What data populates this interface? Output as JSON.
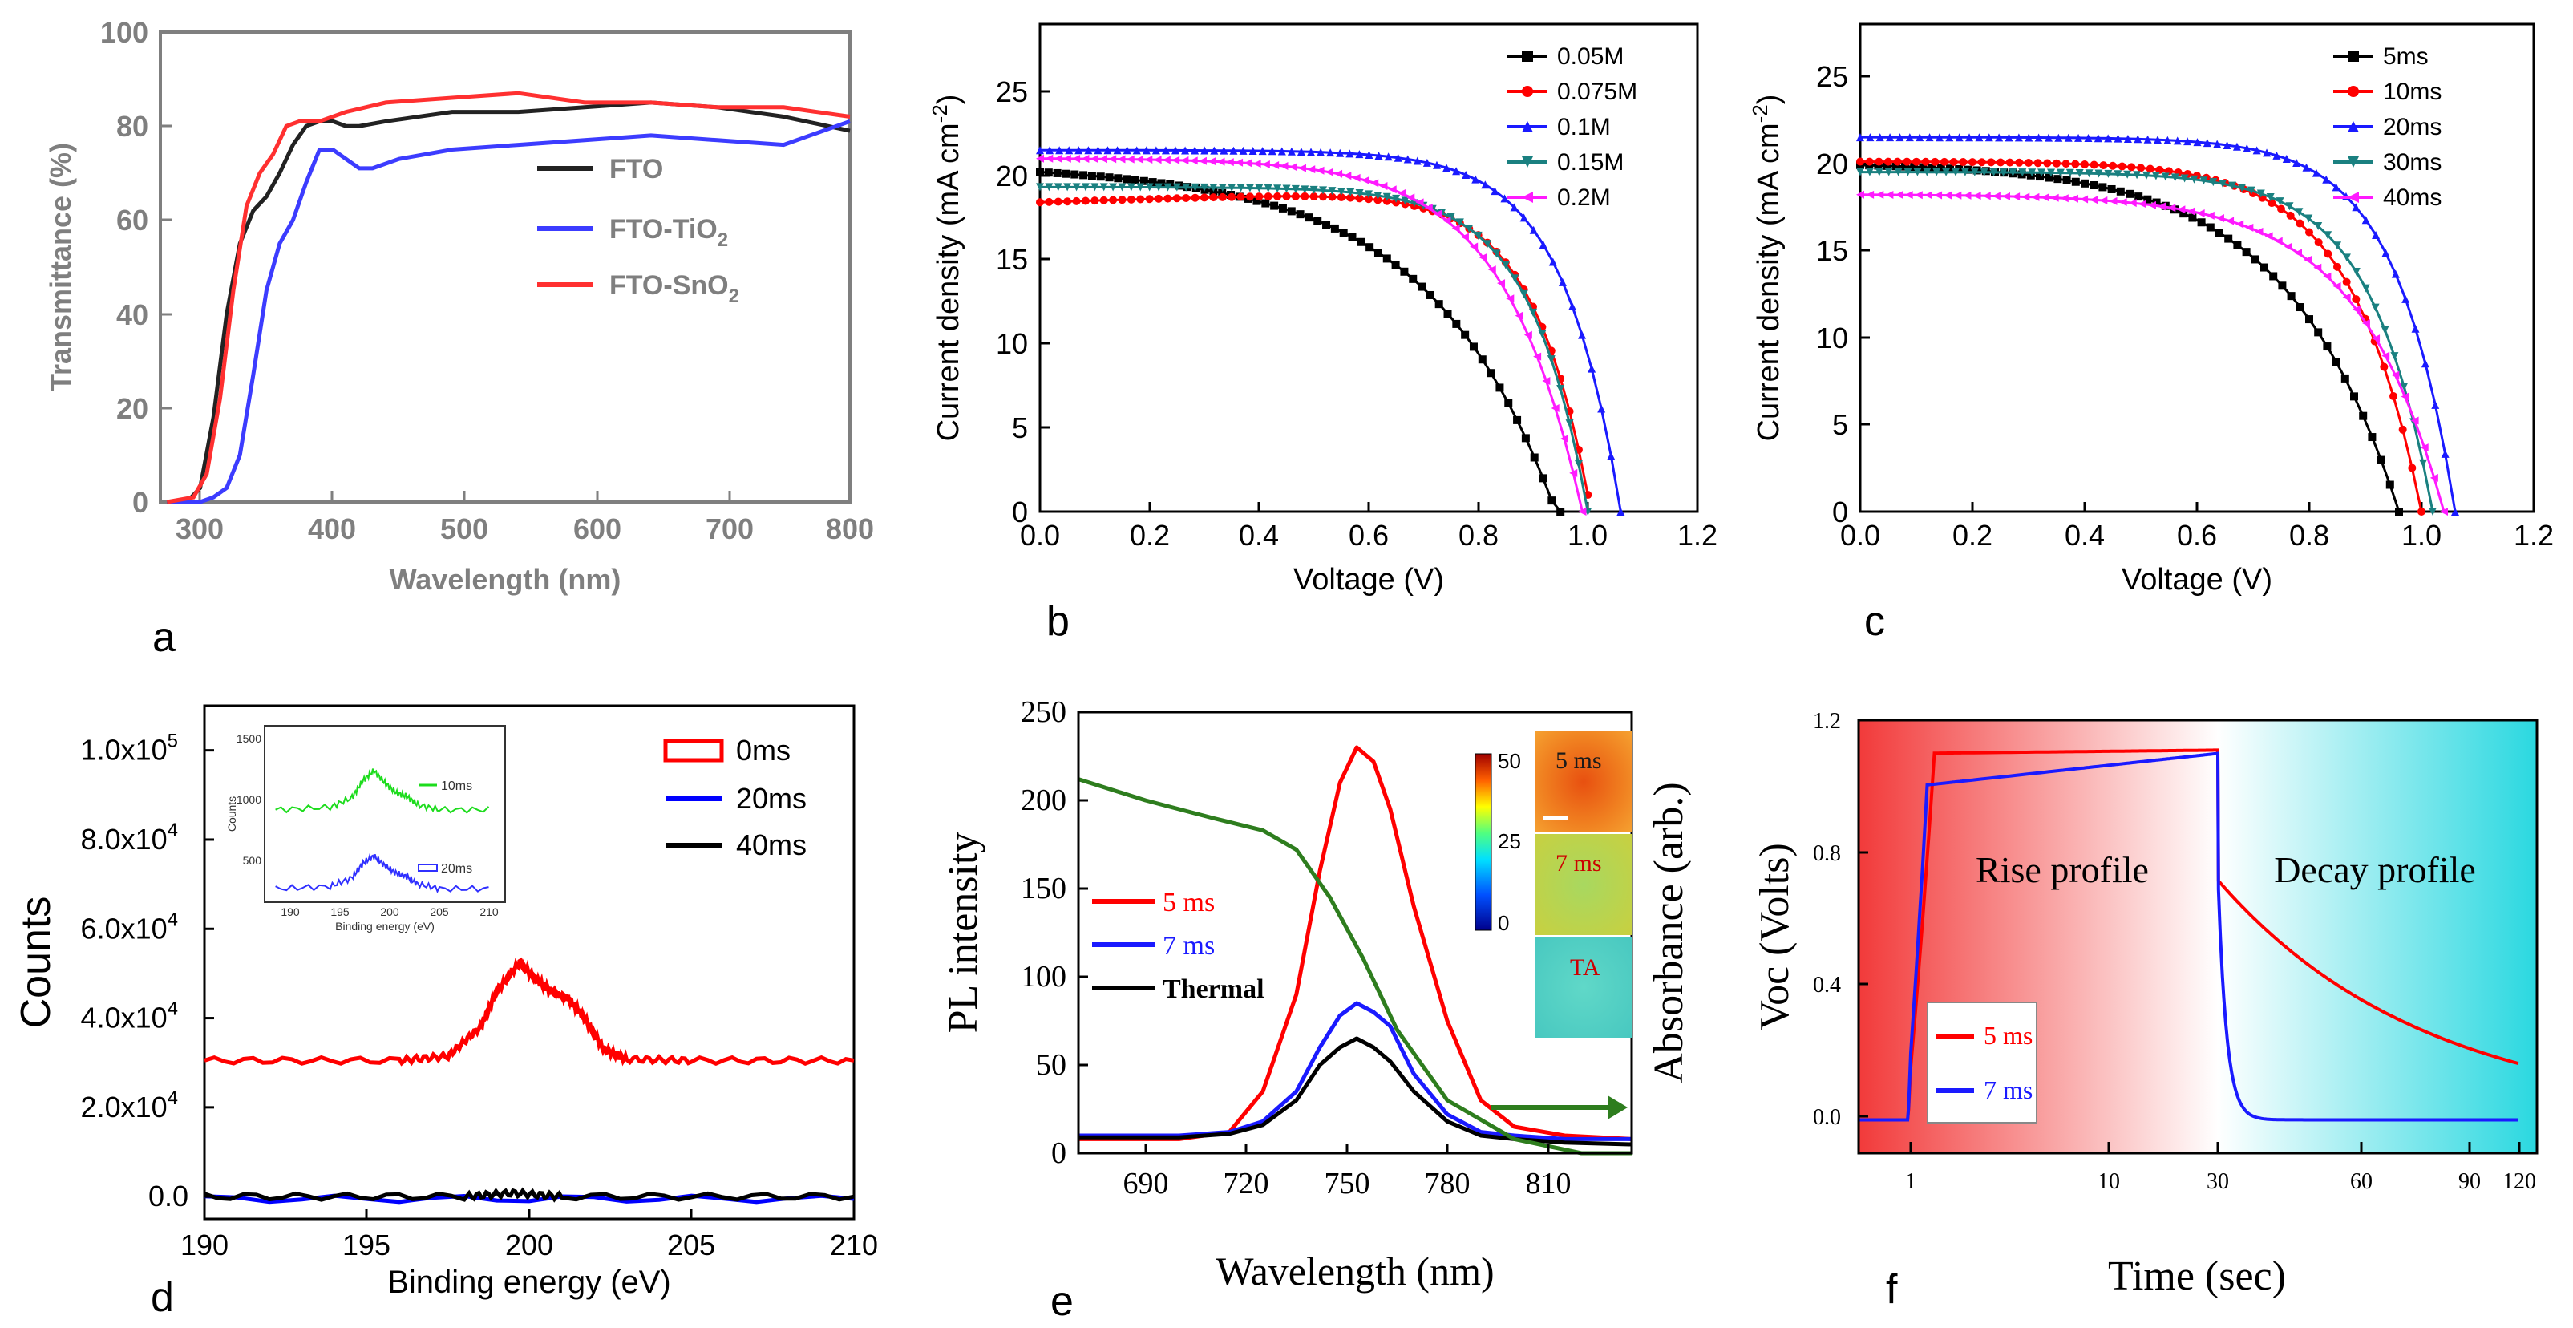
{
  "colors": {
    "black": "#000000",
    "red": "#ff0000",
    "blue": "#1a1aff",
    "teal": "#1a8080",
    "magenta": "#ff1aff",
    "green": "#1ddc1d",
    "olive": "#2e7d1e",
    "gray": "#7f7f7f"
  },
  "chart_data": [
    {
      "id": "a",
      "panel_label": "a",
      "type": "line",
      "xlabel": "Wavelength (nm)",
      "ylabel": "Transmittance (%)",
      "xlim": [
        280,
        800
      ],
      "ylim": [
        0,
        100
      ],
      "xticks": [
        "300",
        "400",
        "500",
        "600",
        "700",
        "800"
      ],
      "yticks": [
        "0",
        "20",
        "40",
        "60",
        "80",
        "100"
      ],
      "legend_position": "center-right",
      "series": [
        {
          "name": "FTO",
          "legend_main": "FTO",
          "legend_sub": "",
          "color": "#222222",
          "x": [
            285,
            300,
            310,
            320,
            330,
            340,
            350,
            360,
            370,
            380,
            390,
            400,
            410,
            420,
            430,
            450,
            500,
            550,
            600,
            650,
            700,
            750,
            800
          ],
          "y": [
            0,
            0,
            3,
            18,
            40,
            55,
            62,
            65,
            70,
            76,
            80,
            81,
            81,
            80,
            80,
            81,
            83,
            83,
            84,
            85,
            84,
            82,
            79
          ]
        },
        {
          "name": "FTO-TiO2",
          "legend_main": "FTO-TiO",
          "legend_sub": "2",
          "color": "#3c3cff",
          "x": [
            285,
            310,
            320,
            330,
            340,
            350,
            360,
            370,
            380,
            390,
            400,
            410,
            420,
            430,
            440,
            460,
            500,
            550,
            600,
            650,
            700,
            750,
            800
          ],
          "y": [
            0,
            0,
            1,
            3,
            10,
            27,
            45,
            55,
            60,
            68,
            75,
            75,
            73,
            71,
            71,
            73,
            75,
            76,
            77,
            78,
            77,
            76,
            81
          ]
        },
        {
          "name": "FTO-SnO2",
          "legend_main": "FTO-SnO",
          "legend_sub": "2",
          "color": "#ff3030",
          "x": [
            285,
            305,
            315,
            325,
            335,
            345,
            355,
            365,
            375,
            385,
            395,
            400,
            420,
            450,
            500,
            550,
            600,
            650,
            700,
            750,
            800
          ],
          "y": [
            0,
            1,
            6,
            22,
            45,
            63,
            70,
            74,
            80,
            81,
            81,
            81,
            83,
            85,
            86,
            87,
            85,
            85,
            84,
            84,
            82
          ]
        }
      ]
    },
    {
      "id": "b",
      "panel_label": "b",
      "type": "line",
      "xlabel": "Voltage (V)",
      "ylabel": "Current density (mA cm",
      "ylabel_sup": "-2",
      "ylabel_end": ")",
      "xlim": [
        0,
        1.2
      ],
      "ylim": [
        0,
        29
      ],
      "xticks": [
        "0.0",
        "0.2",
        "0.4",
        "0.6",
        "0.8",
        "1.0",
        "1.2"
      ],
      "yticks": [
        "0",
        "5",
        "10",
        "15",
        "20",
        "25"
      ],
      "legend_position": "top-right",
      "series": [
        {
          "name": "0.05M",
          "color": "#000000",
          "marker": "square",
          "jsc": 20.2,
          "voc": 0.95,
          "k": 4.5,
          "b": -0.8
        },
        {
          "name": "0.075M",
          "color": "#ff0000",
          "marker": "circle",
          "jsc": 18.4,
          "voc": 1.0,
          "k": 9.5,
          "b": 1.0
        },
        {
          "name": "0.1M",
          "color": "#1a1aff",
          "marker": "triangle-up",
          "jsc": 21.5,
          "voc": 1.06,
          "k": 9.5,
          "b": 0.0
        },
        {
          "name": "0.15M",
          "color": "#1a8080",
          "marker": "triangle-down",
          "jsc": 19.3,
          "voc": 1.0,
          "k": 9.5,
          "b": 0.0
        },
        {
          "name": "0.2M",
          "color": "#ff1aff",
          "marker": "triangle-left",
          "jsc": 21.0,
          "voc": 0.99,
          "k": 7.0,
          "b": 0.0
        }
      ]
    },
    {
      "id": "c",
      "panel_label": "c",
      "type": "line",
      "xlabel": "Voltage (V)",
      "ylabel": "Current density (mA cm",
      "ylabel_sup": "-2",
      "ylabel_end": ")",
      "xlim": [
        0,
        1.2
      ],
      "ylim": [
        0,
        28
      ],
      "xticks": [
        "0.0",
        "0.2",
        "0.4",
        "0.6",
        "0.8",
        "1.0",
        "1.2"
      ],
      "yticks": [
        "0",
        "5",
        "10",
        "15",
        "20",
        "25"
      ],
      "legend_position": "top-right",
      "series": [
        {
          "name": "5ms",
          "color": "#000000",
          "marker": "square",
          "jsc": 19.9,
          "voc": 0.96,
          "k": 5.0,
          "b": 0.0
        },
        {
          "name": "10ms",
          "color": "#ff0000",
          "marker": "circle",
          "jsc": 20.1,
          "voc": 1.0,
          "k": 8.0,
          "b": 0.0
        },
        {
          "name": "20ms",
          "color": "#1a1aff",
          "marker": "triangle-up",
          "jsc": 21.5,
          "voc": 1.06,
          "k": 9.5,
          "b": 0.0
        },
        {
          "name": "30ms",
          "color": "#1a8080",
          "marker": "triangle-down",
          "jsc": 19.5,
          "voc": 1.02,
          "k": 9.0,
          "b": 0.0
        },
        {
          "name": "40ms",
          "color": "#ff1aff",
          "marker": "triangle-left",
          "jsc": 18.2,
          "voc": 1.04,
          "k": 6.5,
          "b": 0.0
        }
      ]
    },
    {
      "id": "d",
      "panel_label": "d",
      "type": "line",
      "xlabel": "Binding energy (eV)",
      "ylabel": "Counts",
      "xlim": [
        190,
        210
      ],
      "ylim": [
        -5000,
        110000
      ],
      "xticks": [
        "190",
        "195",
        "200",
        "205",
        "210"
      ],
      "ytick_values": [
        0,
        20000,
        40000,
        60000,
        80000,
        100000
      ],
      "yticks": [
        "0.0",
        "2.0x10",
        "4.0x10",
        "6.0x10",
        "8.0x10",
        "1.0x10"
      ],
      "ytick_exp": [
        "",
        "4",
        "4",
        "4",
        "4",
        "5"
      ],
      "legend_position": "top-right",
      "series": [
        {
          "name": "0ms",
          "color": "#ff0000",
          "x": [
            190,
            196,
            197.5,
            198.5,
            199,
            199.7,
            200.3,
            200.8,
            201.2,
            201.7,
            202.3,
            203,
            205,
            210
          ],
          "y": [
            30500,
            30500,
            31500,
            38000,
            46000,
            52500,
            48000,
            45500,
            44500,
            40000,
            33000,
            30800,
            30500,
            30500
          ]
        },
        {
          "name": "20ms",
          "color": "#0000ff",
          "x": [
            190,
            210
          ],
          "y": [
            -500,
            -500
          ]
        },
        {
          "name": "40ms",
          "color": "#000000",
          "x": [
            190,
            198,
            199.5,
            201,
            210
          ],
          "y": [
            0,
            0,
            800,
            0,
            0
          ]
        }
      ],
      "inset": {
        "xlabel": "Binding energy (eV)",
        "ylabel": "Counts",
        "xlim": [
          189,
          211
        ],
        "ylim": [
          200,
          1650
        ],
        "xticks": [
          "190",
          "195",
          "200",
          "205",
          "210"
        ],
        "yticks": [
          "500",
          "1000",
          "1500"
        ],
        "series": [
          {
            "name": "10ms",
            "color": "#1ddc1d",
            "x": [
              190,
              195,
              197,
              198,
              199,
              200,
              201,
              202,
              203,
              205,
              210
            ],
            "y": [
              960,
              980,
              1060,
              1200,
              1280,
              1180,
              1100,
              1070,
              1000,
              960,
              960
            ]
          },
          {
            "name": "20ms",
            "color": "#3030ff",
            "x": [
              190,
              195,
              197,
              198,
              199,
              200,
              201,
              202,
              203,
              205,
              210
            ],
            "y": [
              310,
              330,
              400,
              520,
              580,
              500,
              440,
              410,
              350,
              310,
              310
            ]
          }
        ]
      }
    },
    {
      "id": "e",
      "panel_label": "e",
      "type": "line",
      "xlabel": "Wavelength (nm)",
      "ylabel": "PL intensity",
      "ylabel_right": "Absorbance (arb.)",
      "xlim": [
        670,
        835
      ],
      "ylim": [
        0,
        250
      ],
      "xticks": [
        "690",
        "720",
        "750",
        "780",
        "810"
      ],
      "yticks": [
        "0",
        "50",
        "100",
        "150",
        "200",
        "250"
      ],
      "legend_position": "center-left",
      "series": [
        {
          "name": "5 ms",
          "color": "#ff0000",
          "x": [
            670,
            700,
            715,
            725,
            735,
            742,
            748,
            753,
            758,
            763,
            770,
            780,
            790,
            800,
            815,
            835
          ],
          "y": [
            8,
            8,
            12,
            35,
            90,
            160,
            210,
            230,
            222,
            195,
            140,
            75,
            30,
            15,
            10,
            8
          ]
        },
        {
          "name": "7 ms",
          "color": "#1a1aff",
          "x": [
            670,
            700,
            715,
            725,
            735,
            742,
            748,
            753,
            758,
            763,
            770,
            780,
            790,
            800,
            815,
            835
          ],
          "y": [
            10,
            10,
            12,
            18,
            35,
            60,
            78,
            85,
            80,
            72,
            45,
            22,
            12,
            10,
            8,
            8
          ]
        },
        {
          "name": "Thermal",
          "color": "#000000",
          "x": [
            670,
            700,
            715,
            725,
            735,
            742,
            748,
            753,
            758,
            763,
            770,
            780,
            790,
            800,
            815,
            835
          ],
          "y": [
            9,
            9,
            11,
            16,
            30,
            50,
            60,
            65,
            60,
            52,
            35,
            18,
            10,
            8,
            6,
            5
          ]
        },
        {
          "name": "Absorbance",
          "color": "#2e7d1e",
          "x": [
            670,
            690,
            710,
            725,
            735,
            745,
            755,
            765,
            780,
            800,
            820,
            835
          ],
          "y": [
            212,
            200,
            190,
            183,
            172,
            145,
            110,
            70,
            30,
            8,
            0,
            0
          ]
        }
      ],
      "colorbar": {
        "max": "50",
        "mid": "25",
        "min": "0"
      },
      "maps": [
        "5 ms",
        "7 ms",
        "TA"
      ]
    },
    {
      "id": "f",
      "panel_label": "f",
      "type": "line",
      "xlabel": "Time (sec)",
      "ylabel": "Voc (Volts)",
      "ylim": [
        -0.1,
        1.2
      ],
      "xticks": [
        "1",
        "10",
        "30",
        "60",
        "90",
        "120"
      ],
      "yticks": [
        "0.0",
        "0.4",
        "0.8",
        "1.2"
      ],
      "legend_position": "bottom-left",
      "annotations": [
        "Rise profile",
        "Decay profile"
      ],
      "series": [
        {
          "name": "5 ms",
          "color": "#ff0000"
        },
        {
          "name": "7 ms",
          "color": "#1a1aff"
        }
      ]
    }
  ]
}
